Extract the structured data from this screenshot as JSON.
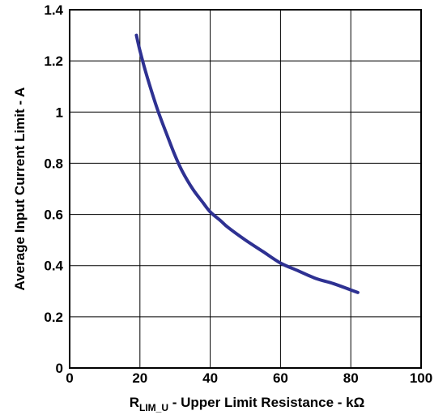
{
  "chart_data": {
    "type": "line",
    "title": "",
    "xlabel_main": "R",
    "xlabel_subscript": "LIM_U",
    "xlabel_rest": " - Upper Limit Resistance  - kΩ",
    "ylabel": "Average Input Current Limit - A",
    "xlim": [
      0,
      100
    ],
    "ylim": [
      0,
      1.4
    ],
    "x_ticks": [
      0,
      20,
      40,
      60,
      80,
      100
    ],
    "y_ticks": [
      0,
      0.2,
      0.4,
      0.6,
      0.8,
      1,
      1.2,
      1.4
    ],
    "x_tick_labels": [
      "0",
      "20",
      "40",
      "60",
      "80",
      "100"
    ],
    "y_tick_labels": [
      "0",
      "0.2",
      "0.4",
      "0.6",
      "0.8",
      "1",
      "1.2",
      "1.4"
    ],
    "grid": true,
    "legend": "none",
    "series": [
      {
        "color": "#2e3192",
        "x": [
          19,
          20,
          22,
          25,
          28,
          30,
          32,
          35,
          38,
          40,
          43,
          45,
          50,
          55,
          60,
          65,
          70,
          75,
          80,
          82
        ],
        "y": [
          1.3,
          1.24,
          1.14,
          1.01,
          0.9,
          0.83,
          0.77,
          0.7,
          0.645,
          0.61,
          0.575,
          0.55,
          0.5,
          0.455,
          0.41,
          0.38,
          0.35,
          0.33,
          0.305,
          0.295
        ]
      }
    ]
  }
}
